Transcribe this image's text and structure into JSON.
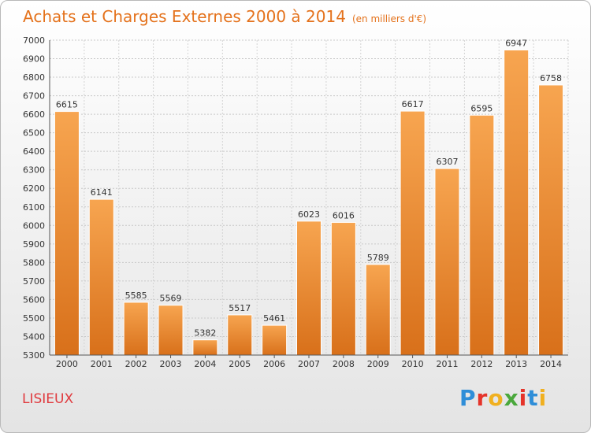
{
  "header": {
    "title": "Achats et Charges Externes 2000 à 2014",
    "unit": "(en milliers d'€)"
  },
  "footer": {
    "city": "LISIEUX",
    "brand_letters": [
      "P",
      "r",
      "o",
      "x",
      "i",
      "t",
      "i"
    ],
    "brand_colors": [
      "#2f8ed8",
      "#e5342a",
      "#f0b020",
      "#4aa83c",
      "#e5342a",
      "#2f8ed8",
      "#f0b020"
    ]
  },
  "chart_data": {
    "type": "bar",
    "categories": [
      "2000",
      "2001",
      "2002",
      "2003",
      "2004",
      "2005",
      "2006",
      "2007",
      "2008",
      "2009",
      "2010",
      "2011",
      "2012",
      "2013",
      "2014"
    ],
    "values": [
      6615,
      6141,
      5585,
      5569,
      5382,
      5517,
      5461,
      6023,
      6016,
      5789,
      6617,
      6307,
      6595,
      6947,
      6758
    ],
    "ylim": [
      5300,
      7000
    ],
    "yticks": [
      5300,
      5400,
      5500,
      5600,
      5700,
      5800,
      5900,
      6000,
      6100,
      6200,
      6300,
      6400,
      6500,
      6600,
      6700,
      6800,
      6900,
      7000
    ],
    "grid": true,
    "bar_color_top": "#f7a550",
    "bar_color_bottom": "#d8701a",
    "text_color": "#e4721c"
  }
}
